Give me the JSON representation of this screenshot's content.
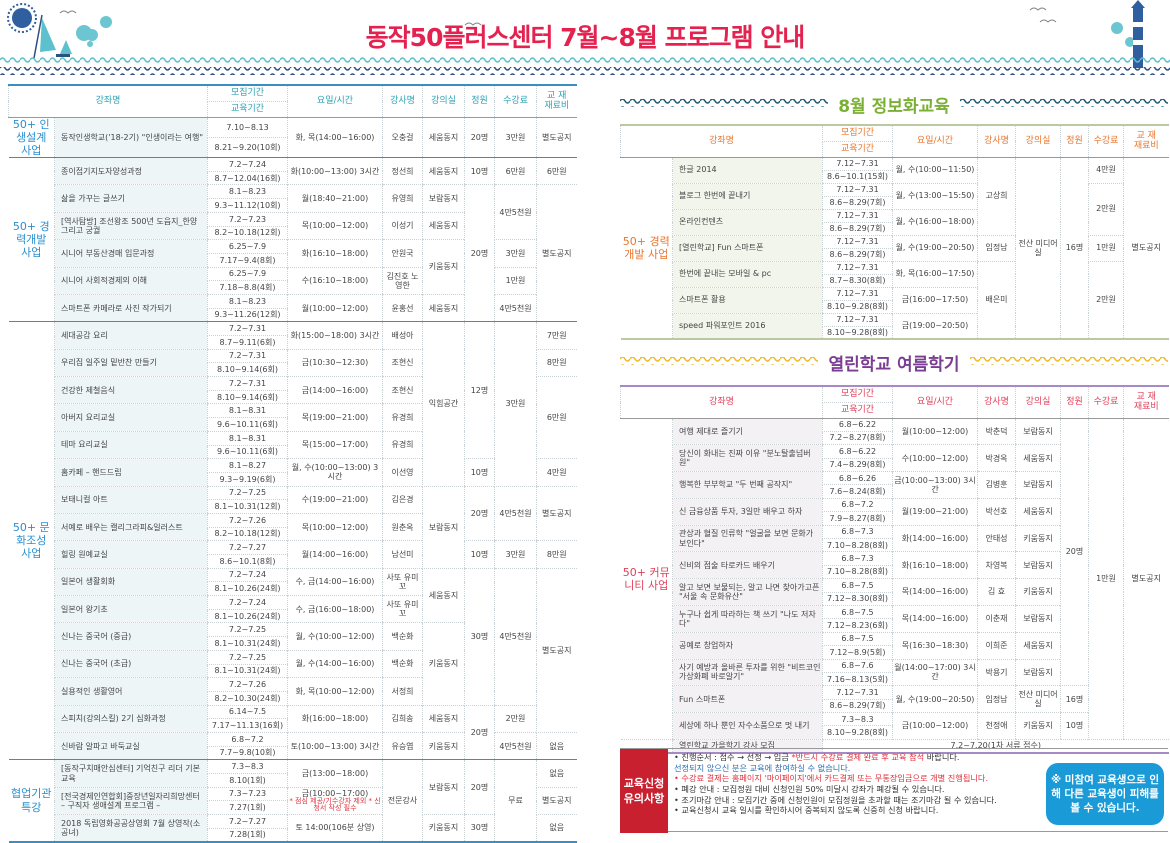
{
  "header": {
    "title": "동작50플러스센터 7월~8월 프로그램 안내"
  },
  "headers": {
    "name": "강좌명",
    "recruit": "모집기간",
    "edu": "교육기간",
    "schedule": "요일/시간",
    "teacher": "강사명",
    "room": "강의실",
    "cap": "정원",
    "fee": "수강료",
    "mat1": "교 재",
    "mat2": "재료비"
  },
  "colors": {
    "title": "#e3224f",
    "left_accent": "#2aa3b5",
    "info_accent": "#e8762d",
    "open_accent": "#e0405a",
    "notice_tag": "#c8202f",
    "notice_box": "#1a9ad6"
  },
  "tables": {
    "left": {
      "courses": [
        {
          "name": "동작인생학교('18-2기) \"인생이라는 여행\"",
          "recruit": "7.10~8.13",
          "edu": "8.21~9.20(10회)",
          "schedule": "화, 목(14:00~16:00)"
        },
        {
          "name": "종이접기지도자양성과정",
          "recruit": "7.2~7.24",
          "edu": "8.7~12.04(16회)",
          "schedule": "화(10:00~13:00) 3시간"
        },
        {
          "name": "삶을 가꾸는 글쓰기",
          "recruit": "8.1~8.23",
          "edu": "9.3~11.12(10회)",
          "schedule": "월(18:40~21:00)"
        },
        {
          "name": "[역사탐방] 조선왕조 500년 도읍지_한양 그리고 궁궐",
          "recruit": "7.2~7.23",
          "edu": "8.2~10.18(12회)",
          "schedule": "목(10:00~12:00)"
        },
        {
          "name": "시니어 부동산경매 입문과정",
          "recruit": "6.25~7.9",
          "edu": "7.17~9.4(8회)",
          "schedule": "화(16:10~18:00)"
        },
        {
          "name": "시니어 사회적경제의 이해",
          "recruit": "6.25~7.9",
          "edu": "7.18~8.8(4회)",
          "schedule": "수(16:10~18:00)"
        },
        {
          "name": "스마트폰 카메라로 사진 작가되기",
          "recruit": "8.1~8.23",
          "edu": "9.3~11.26(12회)",
          "schedule": "월(10:00~12:00)"
        },
        {
          "name": "세대공감 요리",
          "recruit": "7.2~7.31",
          "edu": "8.7~9.11(6회)",
          "schedule": "화(15:00~18:00) 3시간"
        },
        {
          "name": "우리집 일주일 밑반찬 만들기",
          "recruit": "7.2~7.31",
          "edu": "8.10~9.14(6회)",
          "schedule": "금(10:30~12:30)"
        },
        {
          "name": "건강한 제철음식",
          "recruit": "7.2~7.31",
          "edu": "8.10~9.14(6회)",
          "schedule": "금(14:00~16:00)"
        },
        {
          "name": "아버지 요리교실",
          "recruit": "8.1~8.31",
          "edu": "9.6~10.11(6회)",
          "schedule": "목(19:00~21:00)"
        },
        {
          "name": "테마 요리교실",
          "recruit": "8.1~8.31",
          "edu": "9.6~10.11(6회)",
          "schedule": "목(15:00~17:00)"
        },
        {
          "name": "홈카페 – 핸드드립",
          "recruit": "8.1~8.27",
          "edu": "9.3~9.19(6회)",
          "schedule": "월, 수(10:00~13:00) 3시간"
        },
        {
          "name": "보태니컬 아트",
          "recruit": "7.2~7.25",
          "edu": "8.1~10.31(12회)",
          "schedule": "수(19:00~21:00)"
        },
        {
          "name": "서예로 배우는 캘리그라피&일러스트",
          "recruit": "7.2~7.26",
          "edu": "8.2~10.18(12회)",
          "schedule": "목(10:00~12:00)"
        },
        {
          "name": "힐링 원예교실",
          "recruit": "7.2~7.27",
          "edu": "8.6~10.1(8회)",
          "schedule": "월(14:00~16:00)"
        },
        {
          "name": "일본어 생활회화",
          "recruit": "7.2~7.24",
          "edu": "8.1~10.26(24회)",
          "schedule": "수, 금(14:00~16:00)"
        },
        {
          "name": "일본어 왕기초",
          "recruit": "7.2~7.24",
          "edu": "8.1~10.26(24회)",
          "schedule": "수, 금(16:00~18:00)"
        },
        {
          "name": "신나는 중국어 (중급)",
          "recruit": "7.2~7.25",
          "edu": "8.1~10.31(24회)",
          "schedule": "월, 수(10:00~12:00)"
        },
        {
          "name": "신나는 중국어 (초급)",
          "recruit": "7.2~7.25",
          "edu": "8.1~10.31(24회)",
          "schedule": "월, 수(14:00~16:00)"
        },
        {
          "name": "실용적인 생활영어",
          "recruit": "7.2~7.26",
          "edu": "8.2~10.30(24회)",
          "schedule": "화, 목(10:00~12:00)"
        },
        {
          "name": "스피치(강의스킬) 2기 심화과정",
          "recruit": "6.14~7.5",
          "edu": "7.17~11.13(16회)",
          "schedule": "화(16:00~18:00)"
        },
        {
          "name": "신바람 알파고 바둑교실",
          "recruit": "6.8~7.2",
          "edu": "7.7~9.8(10회)",
          "schedule": "토(10:00~13:00) 3시간"
        },
        {
          "name": "[동작구치매안심센터] 기억친구 리더 기본교육",
          "recruit": "7.3~8.3",
          "edu": "8.10(1회)",
          "schedule": "금(13:00~18:00)"
        },
        {
          "name": "[전국경제인연합회]중장년일자리희망센터 – 구직자 생애설계 프로그램 –",
          "recruit": "7.3~7.23",
          "edu": "7.27(1회)",
          "schedule": "금(10:00~17:00)",
          "note": "* 점심 제공/기수강자 제외 * 신청서 작성 필수"
        },
        {
          "name": "2018 독립영화공공상영회 7월 상영작(소공녀)",
          "recruit": "7.2~7.27",
          "edu": "7.28(1회)",
          "schedule": "토 14:00(106분 상영)"
        }
      ],
      "groups": {
        "cat": [
          [
            "50+ 인생설계 사업",
            1
          ],
          [
            "50+ 경력개발 사업",
            6
          ],
          [
            "50+ 문화조성 사업",
            16
          ],
          [
            "협업기관 특강",
            3
          ]
        ],
        "teacher": [
          [
            "오충걸",
            1
          ],
          [
            "정선희",
            1
          ],
          [
            "유영희",
            1
          ],
          [
            "이성기",
            1
          ],
          [
            "안원국",
            1
          ],
          [
            "김진호 노영한",
            1
          ],
          [
            "윤홍선",
            1
          ],
          [
            "배성아",
            1
          ],
          [
            "조현신",
            1
          ],
          [
            "조현신",
            1
          ],
          [
            "유경희",
            1
          ],
          [
            "유경희",
            1
          ],
          [
            "이선영",
            1
          ],
          [
            "김은경",
            1
          ],
          [
            "원춘옥",
            1
          ],
          [
            "남선미",
            1
          ],
          [
            "사또 유미꼬",
            1
          ],
          [
            "사또 유미꼬",
            1
          ],
          [
            "백순화",
            1
          ],
          [
            "백순화",
            1
          ],
          [
            "서정희",
            1
          ],
          [
            "김희송",
            1
          ],
          [
            "유승엽",
            1
          ],
          [
            "전문강사",
            3
          ]
        ],
        "room": [
          [
            "세움동지",
            1
          ],
          [
            "세움동지",
            1
          ],
          [
            "보람동지",
            1
          ],
          [
            "세움동지",
            1
          ],
          [
            "키움동지",
            2
          ],
          [
            "세움동지",
            1
          ],
          [
            "익힘공간",
            6
          ],
          [
            "보람동지",
            3
          ],
          [
            "세움동지",
            2
          ],
          [
            "키움동지",
            3
          ],
          [
            "세움동지",
            1
          ],
          [
            "키움동지",
            1
          ],
          [
            "보람동지",
            2
          ],
          [
            "키움동지",
            1
          ]
        ],
        "cap": [
          [
            "20명",
            1
          ],
          [
            "10명",
            1
          ],
          [
            "20명",
            5
          ],
          [
            "12명",
            5
          ],
          [
            "10명",
            1
          ],
          [
            "20명",
            2
          ],
          [
            "10명",
            1
          ],
          [
            "30명",
            5
          ],
          [
            "20명",
            2
          ],
          [
            "20명",
            2
          ],
          [
            "30명",
            1
          ]
        ],
        "fee": [
          [
            "3만원",
            1
          ],
          [
            "6만원",
            1
          ],
          [
            "4만5천원",
            2
          ],
          [
            "3만원",
            1
          ],
          [
            "1만원",
            1
          ],
          [
            "4만5천원",
            1
          ],
          [
            "3만원",
            6
          ],
          [
            "4만5천원",
            2
          ],
          [
            "3만원",
            1
          ],
          [
            "4만5천원",
            5
          ],
          [
            "2만원",
            1
          ],
          [
            "4만5천원",
            1
          ],
          [
            "무료",
            3
          ]
        ],
        "mat": [
          [
            "별도공지",
            1
          ],
          [
            "6만원",
            1
          ],
          [
            "별도공지",
            5
          ],
          [
            "7만원",
            1
          ],
          [
            "8만원",
            1
          ],
          [
            "6만원",
            3
          ],
          [
            "4만원",
            1
          ],
          [
            "별도공지",
            2
          ],
          [
            "8만원",
            1
          ],
          [
            "별도공지",
            6
          ],
          [
            "없음",
            1
          ],
          [
            "없음",
            1
          ],
          [
            "별도공지",
            1
          ],
          [
            "없음",
            1
          ]
        ]
      }
    },
    "info": {
      "section_title": "8월 정보화교육",
      "courses": [
        {
          "name": "한글 2014",
          "recruit": "7.12~7.31",
          "edu": "8.6~10.1(15회)",
          "schedule": "월, 수(10:00~11:50)"
        },
        {
          "name": "블로그 한번에 끝내기",
          "recruit": "7.12~7.31",
          "edu": "8.6~8.29(7회)",
          "schedule": "월, 수(13:00~15:50)"
        },
        {
          "name": "온라인컨텐츠",
          "recruit": "7.12~7.31",
          "edu": "8.6~8.29(7회)",
          "schedule": "월, 수(16:00~18:00)"
        },
        {
          "name": "[열린학교] Fun 스마트폰",
          "recruit": "7.12~7.31",
          "edu": "8.6~8.29(7회)",
          "schedule": "월, 수(19:00~20:50)"
        },
        {
          "name": "한번에 끝내는 모바일 & pc",
          "recruit": "7.12~7.31",
          "edu": "8.7~8.30(8회)",
          "schedule": "화, 목(16:00~17:50)"
        },
        {
          "name": "스마트폰 활용",
          "recruit": "7.12~7.31",
          "edu": "8.10~9.28(8회)",
          "schedule": "금(16:00~17:50)"
        },
        {
          "name": "speed 파워포인트 2016",
          "recruit": "7.12~7.31",
          "edu": "8.10~9.28(8회)",
          "schedule": "금(19:00~20:50)"
        }
      ],
      "groups": {
        "cat": [
          [
            "50+ 경력개발 사업",
            7
          ]
        ],
        "teacher": [
          [
            "고상희",
            3
          ],
          [
            "임정남",
            1
          ],
          [
            "배은미",
            3
          ]
        ],
        "room": [
          [
            "전산 미디어실",
            7
          ]
        ],
        "cap": [
          [
            "16명",
            7
          ]
        ],
        "fee": [
          [
            "4만원",
            1
          ],
          [
            "2만원",
            2
          ],
          [
            "1만원",
            1
          ],
          [
            "2만원",
            3
          ]
        ],
        "mat": [
          [
            "별도공지",
            7
          ]
        ]
      }
    },
    "open": {
      "section_title": "열린학교 여름학기",
      "courses": [
        {
          "name": "여행 제대로 즐기기",
          "recruit": "6.8~6.22",
          "edu": "7.2~8.27(8회)",
          "schedule": "월(10:00~12:00)"
        },
        {
          "name": "당신이 화내는 진짜 이유 \"분노탈출넘버원\"",
          "recruit": "6.8~6.22",
          "edu": "7.4~8.29(8회)",
          "schedule": "수(10:00~12:00)"
        },
        {
          "name": "행복한 부부학교 \"두 번째 공작지\"",
          "recruit": "6.8~6.26",
          "edu": "7.6~8.24(8회)",
          "schedule": "금(10:00~13:00) 3시간"
        },
        {
          "name": "신 금융상품 투자, 3일만 배우고 하자",
          "recruit": "6.8~7.2",
          "edu": "7.9~8.27(8회)",
          "schedule": "월(19:00~21:00)"
        },
        {
          "name": "관상과 혈질 인류학 \"얼굴을 보면 문화가 보인다\"",
          "recruit": "6.8~7.3",
          "edu": "7.10~8.28(8회)",
          "schedule": "화(14:00~16:00)"
        },
        {
          "name": "신비의 점술 타로카드 배우기",
          "recruit": "6.8~7.3",
          "edu": "7.10~8.28(8회)",
          "schedule": "화(16:10~18:00)"
        },
        {
          "name": "알고 보면 보물되는, 알고 나면 찾아가고픈 \"서울 속 문화유산\"",
          "recruit": "6.8~7.5",
          "edu": "7.12~8.30(8회)",
          "schedule": "목(14:00~16:00)"
        },
        {
          "name": "누구나 쉽게 따라하는 책 쓰기 \"나도 저자다\"",
          "recruit": "6.8~7.5",
          "edu": "7.12~8.23(6회)",
          "schedule": "목(14:00~16:00)"
        },
        {
          "name": "공예로 창업하자",
          "recruit": "6.8~7.5",
          "edu": "7.12~8.9(5회)",
          "schedule": "목(16:30~18:30)"
        },
        {
          "name": "사기 예방과 올바른 투자를 위한 \"비트코인 가상화폐 바로알기\"",
          "recruit": "6.8~7.6",
          "edu": "7.16~8.13(5회)",
          "schedule": "월(14:00~17:00) 3시간"
        },
        {
          "name": "Fun 스마트폰",
          "recruit": "7.12~7.31",
          "edu": "8.6~8.29(7회)",
          "schedule": "월, 수(19:00~20:50)"
        },
        {
          "name": "세상에 하나 뿐인 자수소품으로 멋 내기",
          "recruit": "7.3~8.3",
          "edu": "8.10~9.28(8회)",
          "schedule": "금(10:00~12:00)"
        }
      ],
      "groups": {
        "cat": [
          [
            "50+ 커뮤니티 사업",
            12
          ]
        ],
        "teacher": [
          [
            "박춘덕",
            1
          ],
          [
            "박경옥",
            1
          ],
          [
            "김병훈",
            1
          ],
          [
            "박선호",
            1
          ],
          [
            "안태성",
            1
          ],
          [
            "차영복",
            1
          ],
          [
            "김 효",
            1
          ],
          [
            "이춘재",
            1
          ],
          [
            "이희준",
            1
          ],
          [
            "박용기",
            1
          ],
          [
            "임정남",
            1
          ],
          [
            "천정애",
            1
          ]
        ],
        "room": [
          [
            "보람동지",
            1
          ],
          [
            "세움동지",
            1
          ],
          [
            "보람동지",
            1
          ],
          [
            "세움동지",
            1
          ],
          [
            "키움동지",
            1
          ],
          [
            "보람동지",
            1
          ],
          [
            "키움동지",
            1
          ],
          [
            "보람동지",
            1
          ],
          [
            "세움동지",
            1
          ],
          [
            "보람동지",
            1
          ],
          [
            "전산 미디어실",
            1
          ],
          [
            "키움동지",
            1
          ]
        ],
        "cap": [
          [
            "20명",
            10
          ],
          [
            "16명",
            1
          ],
          [
            "10명",
            1
          ]
        ],
        "fee": [
          [
            "1만원",
            12
          ]
        ],
        "mat": [
          [
            "별도공지",
            12
          ]
        ]
      },
      "footer": {
        "name": "열린학교 가을학기 강사 모집",
        "value": "7.2~7.20(1차 서류 접수)"
      }
    }
  },
  "notice": {
    "tag": "교육신청 유의사항",
    "items": [
      {
        "parts": [
          {
            "t": "• 진행순서 : 접수 → 선정 → 입금 ",
            "c": ""
          },
          {
            "t": "*반드시 수강료 결제 완료 후 교육 참석",
            "c": "red"
          },
          {
            "t": " 바랍니다.",
            "c": ""
          }
        ]
      },
      {
        "parts": [
          {
            "t": "  선정되지 않으신 분은 교육에 참여하실 수 없습니다.",
            "c": "blue"
          }
        ]
      },
      {
        "parts": [
          {
            "t": "• 수강료 결제는 홈페이지 '마이페이지'에서 카드결제 또는 무통장입금으로 개별 진행됩니다.",
            "c": "red"
          }
        ]
      },
      {
        "parts": [
          {
            "t": "• 폐강 안내 : 모집정원 대비 신청인원 50% 미달시 강좌가 폐강될 수 있습니다.",
            "c": ""
          }
        ]
      },
      {
        "parts": [
          {
            "t": "• 조기마감 안내 : 모집기간 중에 신청인원이 모집정원을 초과할 때는 조기마감 될 수 있습니다.",
            "c": ""
          }
        ]
      },
      {
        "parts": [
          {
            "t": "• 교육신청시 교육 일시를 확인하시어 중복되지 않도록 신중히 신청 바랍니다.",
            "c": ""
          }
        ]
      }
    ],
    "callout": "※ 미참여 교육생으로 인해 다른 교육생이 피해를 볼 수 있습니다."
  }
}
